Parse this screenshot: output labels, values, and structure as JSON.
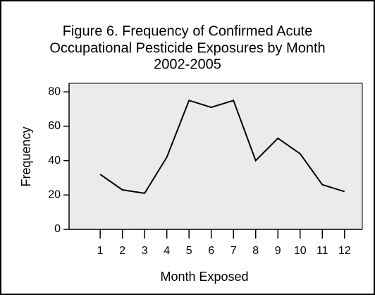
{
  "chart_data": {
    "type": "line",
    "title": [
      "Figure 6. Frequency of Confirmed Acute",
      "Occupational Pesticide Exposures by Month",
      "2002-2005"
    ],
    "x_label": "Month Exposed",
    "y_label": "Frequency",
    "x": [
      1,
      2,
      3,
      4,
      5,
      6,
      7,
      8,
      9,
      10,
      11,
      12
    ],
    "series": [
      {
        "color": "#000000",
        "values": [
          32,
          23,
          21,
          42,
          75,
          71,
          75,
          40,
          53,
          44,
          26,
          22
        ]
      }
    ],
    "xlim": [
      -0.4,
      12.8
    ],
    "xticks": [
      1,
      2,
      3,
      4,
      5,
      6,
      7,
      8,
      9,
      10,
      11,
      12
    ],
    "ylim": [
      0,
      85
    ],
    "yticks": [
      0,
      20,
      40,
      60,
      80
    ],
    "plot_background": "#ebebeb"
  }
}
